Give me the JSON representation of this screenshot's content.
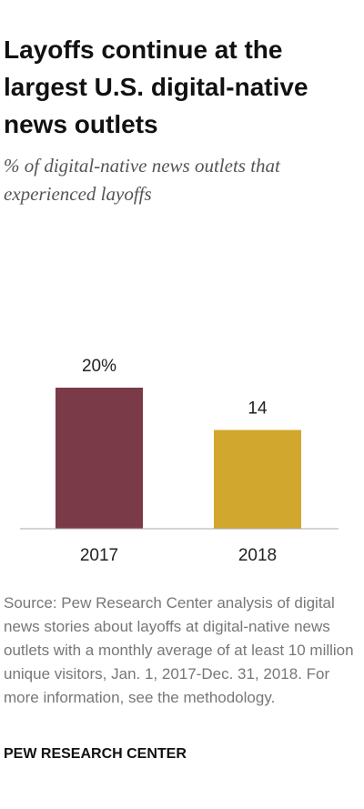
{
  "chart_data": {
    "type": "bar",
    "title": "Layoffs continue at the largest U.S. digital-native news outlets",
    "subtitle": "% of digital-native news outlets that experienced layoffs",
    "categories": [
      "2017",
      "2018"
    ],
    "values": [
      20,
      14
    ],
    "value_labels": [
      "20%",
      "14"
    ],
    "colors": [
      "#7b3a47",
      "#d2a72e"
    ],
    "source": "Source: Pew Research Center analysis of digital news stories about layoffs at digital-native news outlets with a monthly average of at least 10 million unique visitors, Jan. 1, 2017-Dec. 31, 2018. For more information, see the methodology.",
    "footer": "PEW RESEARCH CENTER"
  }
}
